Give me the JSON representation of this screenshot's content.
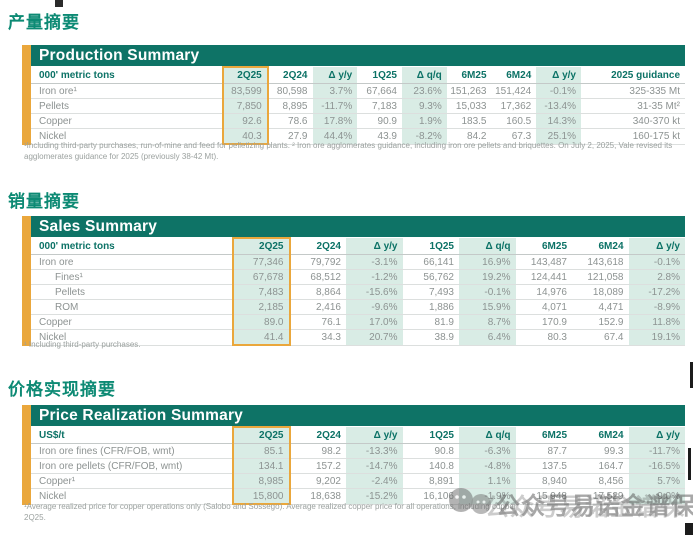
{
  "colors": {
    "teal_bar": "#0e7366",
    "teal_text": "#0c7266",
    "cn_heading_green": "#0d8a74",
    "mint_highlight": "#d9ece5",
    "gold_accent": "#eaa73c",
    "data_gray": "#8d9392"
  },
  "watermark": {
    "icon": "wechat-icon",
    "text": "公众号易诺金谱保"
  },
  "sections": {
    "production": {
      "heading_cn": "产量摘要",
      "title": "Production Summary",
      "unit_label": "000' metric tons",
      "highlighted_column": "2Q25",
      "columns": [
        "2Q25",
        "2Q24",
        "Δ y/y",
        "1Q25",
        "Δ q/q",
        "6M25",
        "6M24",
        "Δ y/y",
        "2025 guidance"
      ],
      "rows": [
        {
          "label": "Iron ore¹",
          "values": [
            "83,599",
            "80,598",
            "3.7%",
            "67,664",
            "23.6%",
            "151,263",
            "151,424",
            "-0.1%",
            "325-335 Mt"
          ]
        },
        {
          "label": "Pellets",
          "values": [
            "7,850",
            "8,895",
            "-11.7%",
            "7,183",
            "9.3%",
            "15,033",
            "17,362",
            "-13.4%",
            "31-35 Mt²"
          ]
        },
        {
          "label": "Copper",
          "values": [
            "92.6",
            "78.6",
            "17.8%",
            "90.9",
            "1.9%",
            "183.5",
            "160.5",
            "14.3%",
            "340-370 kt"
          ]
        },
        {
          "label": "Nickel",
          "values": [
            "40.3",
            "27.9",
            "44.4%",
            "43.9",
            "-8.2%",
            "84.2",
            "67.3",
            "25.1%",
            "160-175 kt"
          ]
        }
      ],
      "footnote_lines": [
        "¹Including third-party purchases, run-of-mine and feed for pelletizing plants. ² Iron ore agglomerates guidance, including iron ore pellets and briquettes. On July 2, 2025,  Vale revised its",
        "agglomerates guidance for 2025 (previously 38-42 Mt)."
      ]
    },
    "sales": {
      "heading_cn": "销量摘要",
      "title": "Sales Summary",
      "unit_label": "000' metric tons",
      "highlighted_column": "2Q25",
      "columns": [
        "2Q25",
        "2Q24",
        "Δ y/y",
        "1Q25",
        "Δ q/q",
        "6M25",
        "6M24",
        "Δ y/y"
      ],
      "rows": [
        {
          "label": "Iron ore",
          "values": [
            "77,346",
            "79,792",
            "-3.1%",
            "66,141",
            "16.9%",
            "143,487",
            "143,618",
            "-0.1%"
          ]
        },
        {
          "label": "Fines¹",
          "indent": true,
          "values": [
            "67,678",
            "68,512",
            "-1.2%",
            "56,762",
            "19.2%",
            "124,441",
            "121,058",
            "2.8%"
          ]
        },
        {
          "label": "Pellets",
          "indent": true,
          "values": [
            "7,483",
            "8,864",
            "-15.6%",
            "7,493",
            "-0.1%",
            "14,976",
            "18,089",
            "-17.2%"
          ]
        },
        {
          "label": "ROM",
          "indent": true,
          "values": [
            "2,185",
            "2,416",
            "-9.6%",
            "1,886",
            "15.9%",
            "4,071",
            "4,471",
            "-8.9%"
          ]
        },
        {
          "label": "Copper",
          "values": [
            "89.0",
            "76.1",
            "17.0%",
            "81.9",
            "8.7%",
            "170.9",
            "152.9",
            "11.8%"
          ]
        },
        {
          "label": "Nickel",
          "values": [
            "41.4",
            "34.3",
            "20.7%",
            "38.9",
            "6.4%",
            "80.3",
            "67.4",
            "19.1%"
          ]
        }
      ],
      "footnote_lines": [
        "¹ Including third-party purchases."
      ]
    },
    "price": {
      "heading_cn": "价格实现摘要",
      "title": "Price Realization Summary",
      "unit_label": "US$/t",
      "highlighted_column": "2Q25",
      "columns": [
        "2Q25",
        "2Q24",
        "Δ y/y",
        "1Q25",
        "Δ q/q",
        "6M25",
        "6M24",
        "Δ y/y"
      ],
      "rows": [
        {
          "label": "Iron ore fines (CFR/FOB, wmt)",
          "values": [
            "85.1",
            "98.2",
            "-13.3%",
            "90.8",
            "-6.3%",
            "87.7",
            "99.3",
            "-11.7%"
          ]
        },
        {
          "label": "Iron ore pellets (CFR/FOB, wmt)",
          "values": [
            "134.1",
            "157.2",
            "-14.7%",
            "140.8",
            "-4.8%",
            "137.5",
            "164.7",
            "-16.5%"
          ]
        },
        {
          "label": "Copper¹",
          "values": [
            "8,985",
            "9,202",
            "-2.4%",
            "8,891",
            "1.1%",
            "8,940",
            "8,456",
            "5.7%"
          ]
        },
        {
          "label": "Nickel",
          "values": [
            "15,800",
            "18,638",
            "-15.2%",
            "16,106",
            "-1.9%",
            "15,948",
            "17,529",
            "-9.0%"
          ]
        }
      ],
      "footnote_lines": [
        "¹Average realized price for copper operations only (Salobo and Sossego). Average realized copper price for all operations, including copper",
        "2Q25."
      ]
    }
  }
}
